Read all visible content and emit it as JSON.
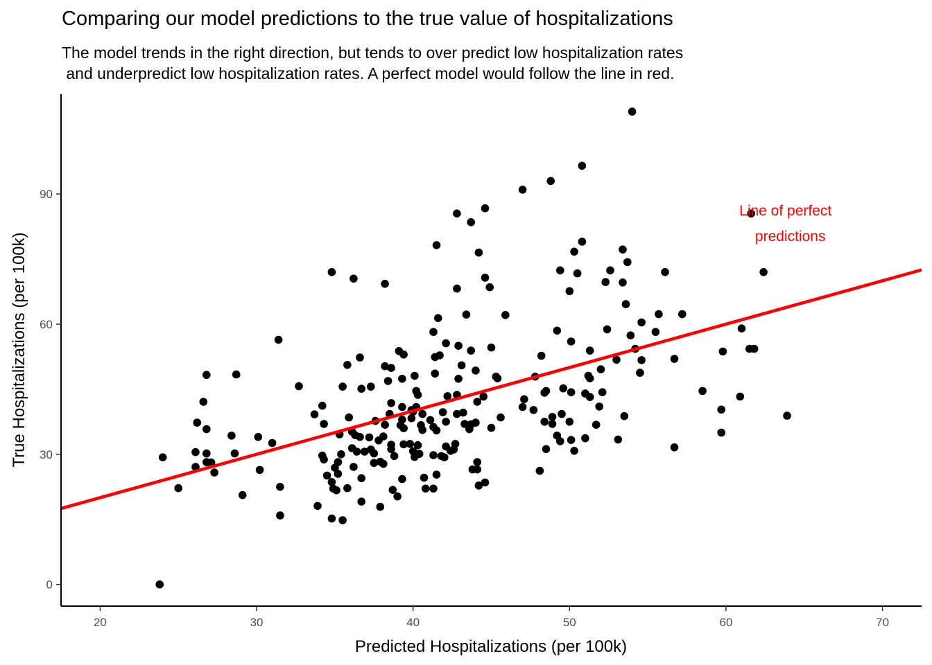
{
  "chart_data": {
    "type": "scatter",
    "title": "Comparing our model predictions to the true value of hospitalizations",
    "subtitle": "The model trends in the right direction, but tends to over predict low hospitalization rates\n and underpredict low hospitalization rates. A perfect model would follow the line in red.",
    "xlabel": "Predicted Hospitalizations (per 100k)",
    "ylabel": "True Hospitalizations (per 100k)",
    "xlim": [
      17.5,
      72.5
    ],
    "ylim": [
      -5,
      113
    ],
    "x_ticks": [
      20,
      30,
      40,
      50,
      60,
      70
    ],
    "y_ticks": [
      0,
      30,
      60,
      90
    ],
    "grid": false,
    "point_color": "#000000",
    "reference_line": {
      "slope": 1,
      "intercept": 0,
      "color": "#ff0000"
    },
    "annotation": {
      "text_lines": [
        "Line of perfect",
        "predictions"
      ],
      "x": 63.8,
      "y": 83.8,
      "color": "#ff0000"
    },
    "points": [
      [
        54.0,
        109.0
      ],
      [
        50.8,
        96.5
      ],
      [
        48.8,
        93.0
      ],
      [
        47.0,
        91.0
      ],
      [
        44.6,
        86.7
      ],
      [
        42.8,
        85.5
      ],
      [
        43.7,
        83.5
      ],
      [
        61.6,
        85.5
      ],
      [
        44.2,
        76.5
      ],
      [
        41.5,
        78.2
      ],
      [
        50.8,
        79.0
      ],
      [
        50.3,
        76.7
      ],
      [
        53.4,
        77.2
      ],
      [
        53.7,
        74.3
      ],
      [
        52.6,
        72.4
      ],
      [
        49.4,
        72.4
      ],
      [
        50.5,
        71.7
      ],
      [
        56.1,
        72.0
      ],
      [
        62.4,
        72.0
      ],
      [
        34.8,
        72.0
      ],
      [
        36.2,
        70.5
      ],
      [
        38.2,
        69.3
      ],
      [
        44.6,
        70.7
      ],
      [
        44.9,
        68.5
      ],
      [
        42.8,
        68.2
      ],
      [
        50.0,
        67.6
      ],
      [
        52.3,
        69.7
      ],
      [
        53.4,
        69.6
      ],
      [
        53.6,
        64.6
      ],
      [
        43.4,
        62.2
      ],
      [
        45.9,
        62.1
      ],
      [
        41.6,
        61.4
      ],
      [
        55.7,
        62.3
      ],
      [
        57.2,
        62.3
      ],
      [
        54.6,
        60.4
      ],
      [
        61.0,
        59.0
      ],
      [
        52.4,
        58.8
      ],
      [
        55.5,
        58.2
      ],
      [
        49.2,
        58.5
      ],
      [
        41.3,
        58.2
      ],
      [
        53.9,
        57.4
      ],
      [
        31.4,
        56.4
      ],
      [
        42.1,
        55.6
      ],
      [
        42.9,
        55.0
      ],
      [
        50.1,
        56.0
      ],
      [
        45.0,
        54.6
      ],
      [
        43.7,
        53.9
      ],
      [
        51.3,
        53.9
      ],
      [
        54.2,
        54.3
      ],
      [
        59.8,
        53.7
      ],
      [
        61.5,
        54.3
      ],
      [
        61.8,
        54.3
      ],
      [
        39.1,
        53.8
      ],
      [
        39.4,
        53.0
      ],
      [
        41.7,
        52.8
      ],
      [
        41.4,
        52.4
      ],
      [
        36.6,
        52.3
      ],
      [
        48.2,
        52.7
      ],
      [
        53.0,
        51.8
      ],
      [
        54.6,
        51.7
      ],
      [
        56.7,
        52.0
      ],
      [
        35.8,
        50.6
      ],
      [
        38.2,
        50.3
      ],
      [
        38.6,
        49.9
      ],
      [
        43.1,
        50.5
      ],
      [
        44.0,
        49.3
      ],
      [
        52.0,
        49.6
      ],
      [
        54.5,
        48.8
      ],
      [
        26.8,
        48.3
      ],
      [
        28.7,
        48.4
      ],
      [
        40.1,
        48.1
      ],
      [
        39.3,
        47.4
      ],
      [
        41.4,
        48.6
      ],
      [
        42.9,
        47.4
      ],
      [
        45.3,
        47.9
      ],
      [
        51.3,
        47.5
      ],
      [
        51.2,
        48.1
      ],
      [
        47.8,
        47.9
      ],
      [
        45.4,
        47.5
      ],
      [
        38.4,
        46.9
      ],
      [
        37.3,
        45.6
      ],
      [
        35.5,
        45.6
      ],
      [
        32.7,
        45.7
      ],
      [
        36.7,
        45.1
      ],
      [
        40.2,
        44.6
      ],
      [
        42.8,
        43.7
      ],
      [
        44.5,
        43.3
      ],
      [
        49.6,
        45.2
      ],
      [
        48.5,
        44.6
      ],
      [
        48.4,
        44.2
      ],
      [
        50.1,
        44.3
      ],
      [
        51.0,
        44.0
      ],
      [
        51.3,
        43.2
      ],
      [
        52.1,
        44.3
      ],
      [
        60.9,
        43.3
      ],
      [
        58.5,
        44.6
      ],
      [
        40.3,
        43.7
      ],
      [
        42.2,
        43.4
      ],
      [
        26.6,
        42.1
      ],
      [
        34.2,
        41.2
      ],
      [
        38.6,
        41.8
      ],
      [
        39.3,
        40.9
      ],
      [
        40.2,
        40.9
      ],
      [
        44.1,
        42.1
      ],
      [
        47.1,
        42.7
      ],
      [
        47.0,
        40.9
      ],
      [
        47.7,
        40.2
      ],
      [
        51.9,
        41.0
      ],
      [
        59.7,
        40.3
      ],
      [
        39.9,
        40.2
      ],
      [
        40.0,
        39.8
      ],
      [
        40.6,
        39.3
      ],
      [
        41.9,
        39.7
      ],
      [
        42.8,
        39.3
      ],
      [
        43.2,
        39.6
      ],
      [
        45.6,
        38.5
      ],
      [
        48.9,
        38.6
      ],
      [
        49.5,
        39.3
      ],
      [
        53.5,
        38.8
      ],
      [
        63.9,
        38.9
      ],
      [
        33.7,
        39.2
      ],
      [
        35.9,
        38.5
      ],
      [
        38.5,
        39.3
      ],
      [
        39.3,
        38.0
      ],
      [
        39.9,
        38.3
      ],
      [
        41.1,
        37.9
      ],
      [
        42.1,
        37.5
      ],
      [
        43.3,
        37.0
      ],
      [
        43.7,
        36.9
      ],
      [
        44.0,
        37.3
      ],
      [
        48.4,
        37.5
      ],
      [
        48.9,
        37.0
      ],
      [
        50.0,
        37.5
      ],
      [
        51.7,
        36.8
      ],
      [
        26.2,
        37.3
      ],
      [
        34.3,
        37.0
      ],
      [
        37.6,
        37.7
      ],
      [
        38.2,
        36.8
      ],
      [
        39.2,
        36.7
      ],
      [
        40.5,
        36.7
      ],
      [
        41.3,
        36.3
      ],
      [
        41.5,
        35.5
      ],
      [
        43.6,
        35.8
      ],
      [
        45.0,
        36.1
      ],
      [
        26.8,
        35.8
      ],
      [
        35.3,
        34.6
      ],
      [
        36.1,
        35.2
      ],
      [
        36.3,
        34.4
      ],
      [
        36.6,
        34.0
      ],
      [
        38.1,
        34.1
      ],
      [
        39.4,
        36.0
      ],
      [
        40.6,
        35.6
      ],
      [
        49.2,
        34.3
      ],
      [
        51.0,
        33.7
      ],
      [
        53.1,
        33.4
      ],
      [
        59.7,
        35.0
      ],
      [
        28.4,
        34.3
      ],
      [
        30.1,
        34.0
      ],
      [
        31.0,
        32.6
      ],
      [
        37.2,
        33.9
      ],
      [
        37.8,
        33.2
      ],
      [
        38.6,
        32.2
      ],
      [
        39.4,
        32.3
      ],
      [
        39.8,
        32.4
      ],
      [
        40.3,
        32.1
      ],
      [
        42.1,
        31.8
      ],
      [
        42.7,
        32.4
      ],
      [
        49.4,
        33.0
      ],
      [
        50.1,
        33.3
      ],
      [
        50.3,
        30.8
      ],
      [
        56.7,
        31.6
      ],
      [
        48.5,
        31.2
      ],
      [
        36.1,
        31.4
      ],
      [
        36.9,
        30.6
      ],
      [
        37.3,
        31.1
      ],
      [
        38.6,
        31.2
      ],
      [
        40.0,
        30.7
      ],
      [
        40.4,
        30.1
      ],
      [
        41.3,
        29.8
      ],
      [
        42.4,
        30.8
      ],
      [
        42.6,
        31.1
      ],
      [
        26.1,
        30.5
      ],
      [
        26.8,
        30.2
      ],
      [
        28.6,
        30.2
      ],
      [
        34.2,
        29.7
      ],
      [
        35.4,
        30.0
      ],
      [
        36.4,
        30.6
      ],
      [
        37.5,
        30.2
      ],
      [
        38.8,
        29.6
      ],
      [
        40.1,
        29.4
      ],
      [
        41.8,
        29.6
      ],
      [
        42.0,
        29.3
      ],
      [
        24.0,
        29.3
      ],
      [
        26.8,
        28.2
      ],
      [
        27.1,
        28.1
      ],
      [
        34.3,
        28.8
      ],
      [
        35.2,
        28.2
      ],
      [
        37.5,
        28.0
      ],
      [
        37.9,
        28.3
      ],
      [
        38.1,
        27.8
      ],
      [
        44.1,
        28.2
      ],
      [
        26.1,
        27.1
      ],
      [
        35.0,
        26.9
      ],
      [
        36.2,
        27.1
      ],
      [
        43.8,
        26.5
      ],
      [
        44.1,
        26.5
      ],
      [
        48.1,
        26.2
      ],
      [
        27.3,
        25.8
      ],
      [
        30.2,
        26.4
      ],
      [
        34.5,
        25.1
      ],
      [
        35.2,
        25.5
      ],
      [
        36.7,
        24.5
      ],
      [
        39.3,
        24.3
      ],
      [
        40.7,
        24.6
      ],
      [
        41.5,
        25.3
      ],
      [
        44.6,
        23.5
      ],
      [
        44.2,
        22.8
      ],
      [
        34.8,
        23.6
      ],
      [
        34.9,
        22.1
      ],
      [
        35.8,
        22.2
      ],
      [
        38.7,
        21.8
      ],
      [
        40.8,
        22.1
      ],
      [
        41.3,
        22.1
      ],
      [
        25.0,
        22.2
      ],
      [
        31.5,
        22.5
      ],
      [
        35.1,
        21.7
      ],
      [
        29.1,
        20.6
      ],
      [
        39.0,
        20.3
      ],
      [
        36.7,
        19.1
      ],
      [
        33.9,
        18.1
      ],
      [
        37.9,
        17.9
      ],
      [
        31.5,
        15.9
      ],
      [
        34.8,
        15.2
      ],
      [
        35.5,
        14.8
      ],
      [
        23.8,
        0.0
      ]
    ]
  }
}
